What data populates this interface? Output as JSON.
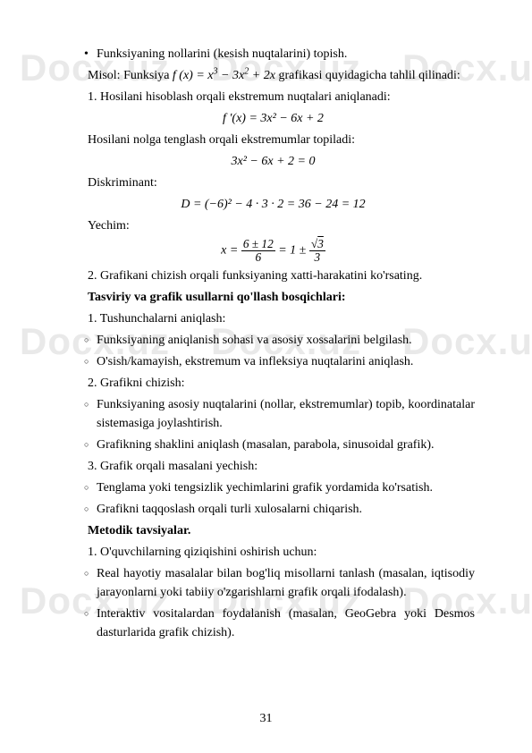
{
  "watermark": "Docx.uz",
  "lines": {
    "l1": "Funksiyaning nollarini (kesish nuqtalarini) topish.",
    "l2a": "Misol: Funksiya ",
    "l2b": " grafikasi quyidagicha tahlil qilinadi:",
    "l3": "1.  Hosilani hisoblash orqali ekstremum nuqtalari aniqlanadi:",
    "l4": "Hosilani nolga tenglash orqali ekstremumlar topiladi:",
    "l5": "Diskriminant:",
    "l6": "Yechim:",
    "l7": "2.  Grafikani chizish orqali funksiyaning xatti-harakatini ko'rsating.",
    "l8": "Tasviriy va grafik usullarni qo'llash bosqichlari:",
    "l9": "1.  Tushunchalarni aniqlash:",
    "l10": "Funksiyaning aniqlanish sohasi va asosiy xossalarini belgilash.",
    "l11": "O'sish/kamayish, ekstremum va infleksiya nuqtalarini aniqlash.",
    "l12": "2.  Grafikni chizish:",
    "l13": "Funksiyaning asosiy nuqtalarini (nollar, ekstremumlar) topib, koordinatalar sistemasiga joylashtirish.",
    "l14": "Grafikning shaklini aniqlash (masalan, parabola, sinusoidal grafik).",
    "l15": "3.  Grafik orqali masalani yechish:",
    "l16": "Tenglama yoki tengsizlik yechimlarini grafik yordamida ko'rsatish.",
    "l17": "Grafikni taqqoslash orqali turli xulosalarni chiqarish.",
    "l18": "Metodik tavsiyalar.",
    "l19": "1.  O'quvchilarning qiziqishini oshirish uchun:",
    "l20": "Real hayotiy masalalar bilan bog'liq misollarni tanlash (masalan, iqtisodiy jarayonlarni yoki tabiiy o'zgarishlarni grafik orqali ifodalash).",
    "l21": "Interaktiv vositalardan foydalanish (masalan, GeoGebra yoki Desmos dasturlarida grafik chizish)."
  },
  "formulas": {
    "f1_pre": "f (x) = x",
    "f1_post": " − 3x",
    "f1_end": " + 2x",
    "f2": "f '(x) = 3x² − 6x + 2",
    "f3": "3x² − 6x + 2 = 0",
    "f4": "D = (−6)² − 4 · 3 · 2 = 36 − 24 = 12",
    "f5_var": "x = ",
    "f5_num1": "6 ± 12",
    "f5_den1": "6",
    "f5_mid": " = 1 ± ",
    "f5_num2": "3",
    "f5_den2": "3"
  },
  "pageNumber": "31"
}
